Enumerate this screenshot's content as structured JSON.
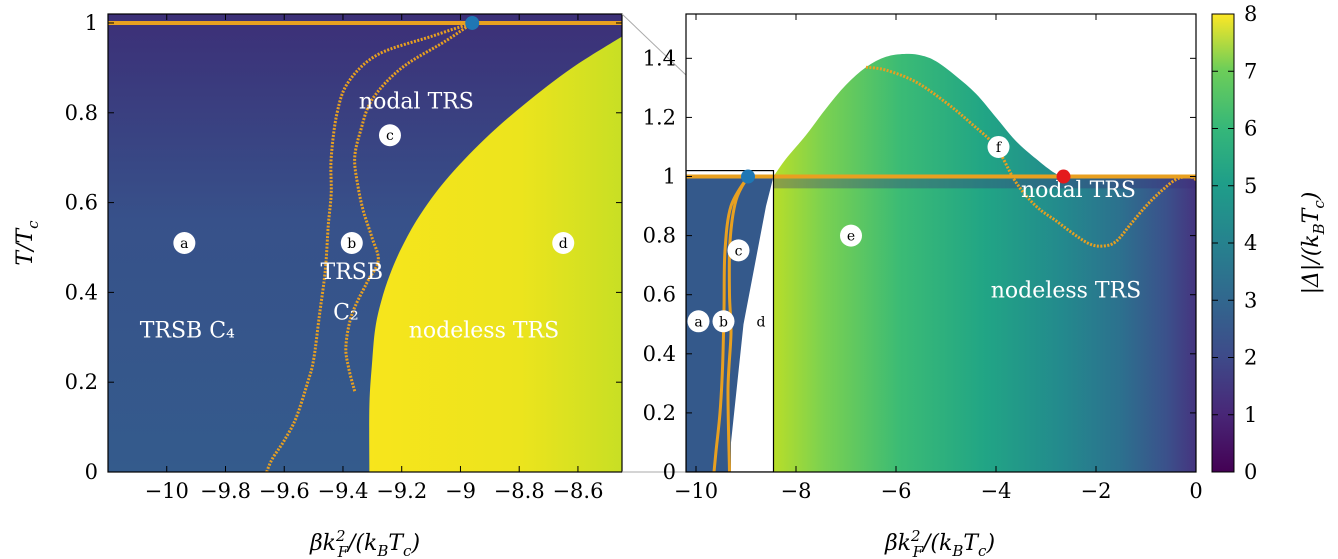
{
  "chart_data": [
    {
      "type": "heatmap",
      "panel": "left",
      "xlabel": "βk_F²/(k_BT_c)",
      "ylabel": "T/T_c",
      "xlim": [
        -10.2,
        -8.45
      ],
      "ylim": [
        0,
        1.02
      ],
      "xticks": [
        "−10",
        "−9.8",
        "−9.6",
        "−9.4",
        "−9.2",
        "−9",
        "−8.8",
        "−8.6"
      ],
      "xtick_values": [
        -10,
        -9.8,
        -9.6,
        -9.4,
        -9.2,
        -9,
        -8.8,
        -8.6
      ],
      "yticks": [
        "0",
        "0.2",
        "0.4",
        "0.6",
        "0.8",
        "1"
      ],
      "ytick_values": [
        0,
        0.2,
        0.4,
        0.6,
        0.8,
        1
      ],
      "region_labels": [
        {
          "text": "nodal TRS",
          "x": -9.15,
          "y": 0.81
        },
        {
          "text": "TRSB",
          "x": -9.37,
          "y": 0.43
        },
        {
          "text": "C₂",
          "x": -9.39,
          "y": 0.34
        },
        {
          "text": "TRSB C₄",
          "x": -9.93,
          "y": 0.3
        },
        {
          "text": "nodeless TRS",
          "x": -8.92,
          "y": 0.3
        }
      ],
      "markers": [
        {
          "label": "a",
          "x": -9.94,
          "y": 0.51
        },
        {
          "label": "b",
          "x": -9.37,
          "y": 0.51
        },
        {
          "label": "c",
          "x": -9.24,
          "y": 0.75
        },
        {
          "label": "d",
          "x": -8.65,
          "y": 0.51
        }
      ],
      "critical_points": [
        {
          "x": -8.96,
          "y": 1.0,
          "color": "#1f77b4"
        }
      ],
      "boundaries": [
        {
          "name": "outer",
          "x": [
            -9.66,
            -9.64,
            -9.6,
            -9.56,
            -9.52,
            -9.5,
            -9.48,
            -9.46,
            -9.45,
            -9.44,
            -9.44,
            -9.42,
            -9.38,
            -9.28,
            -9.1,
            -8.96
          ],
          "y": [
            0.0,
            0.03,
            0.07,
            0.12,
            0.2,
            0.25,
            0.35,
            0.45,
            0.55,
            0.62,
            0.7,
            0.8,
            0.87,
            0.93,
            0.97,
            1.0
          ]
        },
        {
          "name": "inner",
          "x": [
            -9.36,
            -9.38,
            -9.39,
            -9.37,
            -9.32,
            -9.28,
            -9.3,
            -9.33,
            -9.35,
            -9.36,
            -9.34,
            -9.3,
            -9.2,
            -9.05,
            -8.96
          ],
          "y": [
            0.18,
            0.23,
            0.28,
            0.35,
            0.42,
            0.47,
            0.52,
            0.58,
            0.64,
            0.7,
            0.76,
            0.83,
            0.9,
            0.96,
            1.0
          ]
        },
        {
          "name": "TRS",
          "x": [
            -10.2,
            -8.45
          ],
          "y": [
            1.0,
            1.0
          ]
        }
      ],
      "nodeless_boundary": {
        "x": [
          -9.31,
          -9.31,
          -9.3,
          -9.29,
          -9.27,
          -9.24,
          -9.2,
          -9.14,
          -9.05,
          -8.92,
          -8.78,
          -8.62,
          -8.45
        ],
        "y": [
          0.0,
          0.15,
          0.25,
          0.32,
          0.38,
          0.44,
          0.5,
          0.57,
          0.65,
          0.74,
          0.82,
          0.9,
          0.97
        ]
      }
    },
    {
      "type": "heatmap",
      "panel": "right",
      "xlabel": "βk_F²/(k_BT_c)",
      "xlim": [
        -10.2,
        0
      ],
      "ylim": [
        0,
        1.55
      ],
      "xticks": [
        "−10",
        "−8",
        "−6",
        "−4",
        "−2",
        "0"
      ],
      "xtick_values": [
        -10,
        -8,
        -6,
        -4,
        -2,
        0
      ],
      "yticks": [
        "0",
        "0.2",
        "0.4",
        "0.6",
        "0.8",
        "1",
        "1.2",
        "1.4"
      ],
      "ytick_values": [
        0,
        0.2,
        0.4,
        0.6,
        0.8,
        1,
        1.2,
        1.4
      ],
      "region_labels": [
        {
          "text": "nodal TRS",
          "x": -2.35,
          "y": 0.93
        },
        {
          "text": "nodeless TRS",
          "x": -2.6,
          "y": 0.59
        }
      ],
      "markers": [
        {
          "label": "a",
          "x": -9.95,
          "y": 0.51
        },
        {
          "label": "b",
          "x": -9.45,
          "y": 0.51
        },
        {
          "label": "c",
          "x": -9.15,
          "y": 0.75
        },
        {
          "label": "d",
          "x": -8.7,
          "y": 0.51
        },
        {
          "label": "e",
          "x": -6.9,
          "y": 0.8
        },
        {
          "label": "f",
          "x": -3.95,
          "y": 1.1
        }
      ],
      "critical_points": [
        {
          "x": -8.96,
          "y": 1.0,
          "color": "#1f77b4"
        },
        {
          "x": -2.65,
          "y": 1.0,
          "color": "#e41a1c"
        }
      ],
      "dome": {
        "x": [
          -8.45,
          -8.2,
          -7.8,
          -7.4,
          -7.0,
          -6.6,
          -6.2,
          -5.8,
          -5.5,
          -5.2,
          -4.8,
          -4.4,
          -4.0,
          -3.6,
          -3.2,
          -2.9,
          -2.7
        ],
        "y": [
          1.0,
          1.06,
          1.14,
          1.23,
          1.31,
          1.37,
          1.405,
          1.415,
          1.41,
          1.39,
          1.34,
          1.28,
          1.2,
          1.12,
          1.06,
          1.02,
          1.0
        ]
      },
      "boundaries": [
        {
          "name": "loop",
          "x": [
            -6.6,
            -6.2,
            -5.6,
            -5.0,
            -4.5,
            -4.0,
            -3.6,
            -3.2,
            -2.8,
            -2.4,
            -2.1,
            -1.85,
            -1.6,
            -1.3,
            -1.0,
            -0.7,
            -0.4,
            -0.15,
            0
          ],
          "y": [
            1.37,
            1.36,
            1.32,
            1.25,
            1.18,
            1.1,
            0.98,
            0.9,
            0.85,
            0.8,
            0.77,
            0.765,
            0.78,
            0.84,
            0.9,
            0.95,
            0.99,
            1.0,
            0.99
          ]
        },
        {
          "name": "outer",
          "x": [
            -9.64,
            -9.6,
            -9.52,
            -9.47,
            -9.44,
            -9.42,
            -9.3,
            -8.96
          ],
          "y": [
            0.0,
            0.07,
            0.2,
            0.35,
            0.55,
            0.75,
            0.9,
            1.0
          ]
        },
        {
          "name": "inner",
          "x": [
            -9.33,
            -9.36,
            -9.3,
            -9.33,
            -9.32,
            -9.2,
            -8.96
          ],
          "y": [
            0.0,
            0.28,
            0.47,
            0.6,
            0.78,
            0.92,
            1.0
          ]
        },
        {
          "name": "TRS",
          "x": [
            -10.2,
            0
          ],
          "y": [
            1.0,
            1.0
          ]
        }
      ],
      "inset_box": {
        "x": [
          -10.2,
          -8.45
        ],
        "y": [
          0,
          1.02
        ]
      }
    }
  ],
  "colorbar": {
    "label": "|Δ|/(k_BT_c)",
    "range": [
      0,
      8
    ],
    "ticks": [
      "0",
      "1",
      "2",
      "3",
      "4",
      "5",
      "6",
      "7",
      "8"
    ],
    "tick_values": [
      0,
      1,
      2,
      3,
      4,
      5,
      6,
      7,
      8
    ],
    "colormap": "viridis"
  },
  "colors": {
    "boundary": "#e8a020",
    "background_low": "#3a2a74",
    "nodal": "#31608f",
    "trsb": "#34598b",
    "nodeless_left": "#f3e51f",
    "nodeless_right_edge": "#d7e21b"
  }
}
